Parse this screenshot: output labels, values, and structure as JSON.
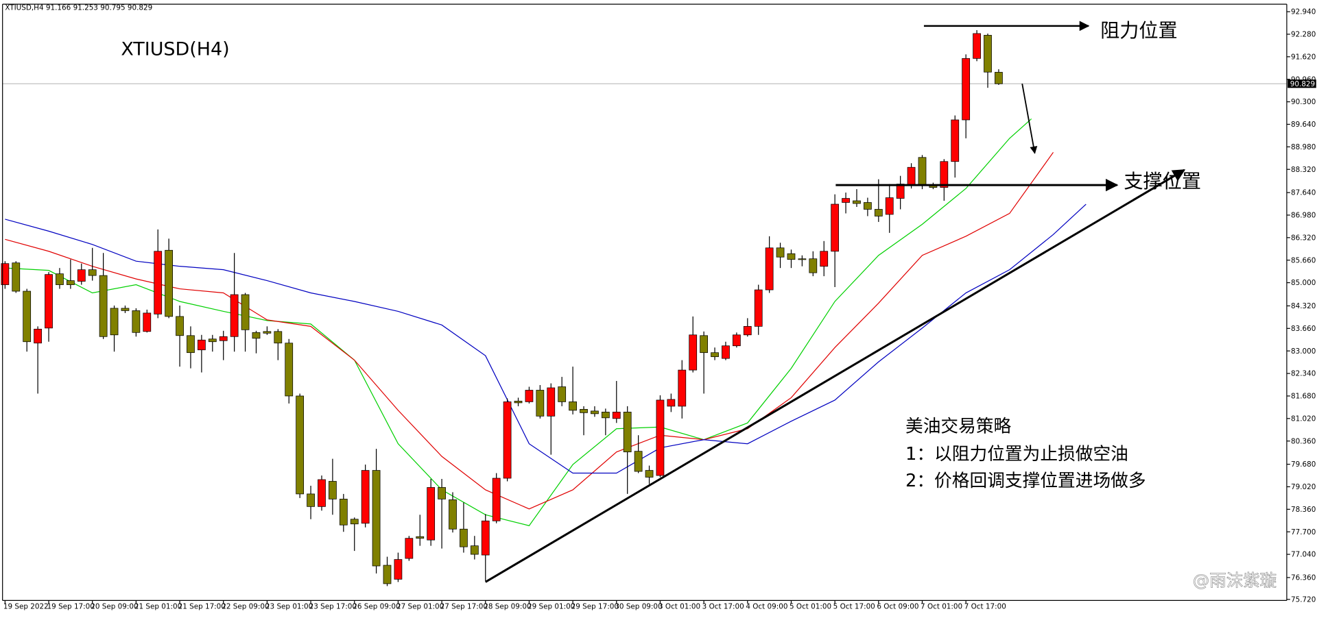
{
  "header": {
    "symbol": "XTIUSD,H4"
  },
  "chart_data": {
    "type": "candlestick",
    "title": "XTIUSD(H4)",
    "categories": [
      "19 Sep 2022",
      null,
      null,
      null,
      "19 Sep 17:00",
      null,
      null,
      null,
      "20 Sep 09:00",
      null,
      null,
      null,
      "21 Sep 01:00",
      null,
      null,
      null,
      "21 Sep 17:00",
      null,
      null,
      null,
      "22 Sep 09:00",
      null,
      null,
      null,
      "23 Sep 01:00",
      null,
      null,
      null,
      "23 Sep 17:00",
      null,
      null,
      null,
      "26 Sep 09:00",
      null,
      null,
      null,
      "27 Sep 01:00",
      null,
      null,
      null,
      "27 Sep 17:00",
      null,
      null,
      null,
      "28 Sep 09:00",
      null,
      null,
      null,
      "29 Sep 01:00",
      null,
      null,
      null,
      "29 Sep 17:00",
      null,
      null,
      null,
      "30 Sep 09:00",
      null,
      null,
      null,
      "3 Oct 01:00",
      null,
      null,
      null,
      "3 Oct 17:00",
      null,
      null,
      null,
      "4 Oct 09:00",
      null,
      null,
      null,
      "5 Oct 01:00",
      null,
      null,
      null,
      "5 Oct 17:00",
      null,
      null,
      null,
      "6 Oct 09:00",
      null,
      null,
      null,
      "7 Oct 01:00",
      null,
      null,
      null,
      "7 Oct 17:00",
      null,
      null,
      null
    ],
    "up_color": "#ff0000",
    "down_color": "#808000",
    "candles": [
      [
        84.94,
        85.63,
        84.82,
        85.56
      ],
      [
        85.58,
        85.63,
        84.7,
        84.75
      ],
      [
        84.75,
        84.82,
        82.98,
        83.27
      ],
      [
        83.23,
        83.72,
        81.75,
        83.64
      ],
      [
        83.67,
        85.31,
        83.27,
        85.24
      ],
      [
        85.26,
        85.43,
        84.82,
        84.94
      ],
      [
        85.06,
        85.68,
        84.82,
        84.94
      ],
      [
        85.04,
        85.56,
        84.94,
        85.38
      ],
      [
        85.38,
        86.02,
        85.06,
        85.21
      ],
      [
        85.21,
        85.87,
        83.35,
        83.42
      ],
      [
        84.25,
        84.33,
        82.98,
        83.47
      ],
      [
        84.25,
        84.33,
        84.11,
        84.18
      ],
      [
        84.18,
        84.25,
        83.42,
        83.54
      ],
      [
        83.57,
        84.21,
        83.54,
        84.11
      ],
      [
        84.08,
        86.56,
        83.96,
        85.92
      ],
      [
        85.95,
        86.29,
        83.96,
        84.01
      ],
      [
        84.01,
        84.33,
        82.54,
        83.45
      ],
      [
        83.45,
        83.72,
        82.49,
        82.95
      ],
      [
        83.03,
        83.47,
        82.37,
        83.32
      ],
      [
        83.35,
        83.47,
        82.98,
        83.27
      ],
      [
        83.3,
        83.59,
        82.73,
        83.42
      ],
      [
        83.42,
        85.87,
        82.98,
        84.65
      ],
      [
        84.65,
        84.7,
        82.98,
        83.62
      ],
      [
        83.54,
        83.59,
        82.93,
        83.37
      ],
      [
        83.57,
        83.72,
        83.47,
        83.52
      ],
      [
        83.57,
        83.64,
        82.73,
        83.23
      ],
      [
        83.23,
        83.35,
        81.46,
        81.68
      ],
      [
        81.68,
        81.75,
        78.69,
        78.81
      ],
      [
        78.81,
        79.05,
        78.07,
        78.44
      ],
      [
        78.44,
        79.35,
        78.32,
        79.23
      ],
      [
        79.18,
        79.84,
        78.2,
        78.66
      ],
      [
        78.66,
        78.81,
        77.7,
        77.9
      ],
      [
        78.07,
        78.12,
        77.14,
        77.93
      ],
      [
        77.95,
        79.67,
        77.83,
        79.5
      ],
      [
        79.5,
        80.13,
        76.48,
        76.7
      ],
      [
        76.72,
        76.97,
        76.11,
        76.18
      ],
      [
        76.31,
        77.09,
        76.23,
        76.89
      ],
      [
        76.92,
        77.58,
        76.85,
        77.51
      ],
      [
        77.56,
        78.2,
        77.29,
        77.51
      ],
      [
        77.46,
        79.25,
        77.29,
        79.0
      ],
      [
        79.0,
        79.25,
        77.21,
        78.66
      ],
      [
        78.64,
        78.86,
        77.68,
        77.78
      ],
      [
        77.78,
        78.56,
        77.09,
        77.26
      ],
      [
        77.29,
        77.58,
        76.89,
        77.04
      ],
      [
        77.02,
        78.22,
        76.26,
        78.02
      ],
      [
        78.02,
        79.42,
        77.95,
        79.27
      ],
      [
        79.27,
        81.61,
        79.18,
        81.51
      ],
      [
        81.53,
        81.63,
        81.38,
        81.48
      ],
      [
        81.51,
        81.95,
        81.46,
        81.85
      ],
      [
        81.85,
        82.0,
        81.02,
        81.09
      ],
      [
        81.09,
        82.05,
        79.96,
        81.92
      ],
      [
        81.95,
        82.24,
        81.38,
        81.51
      ],
      [
        81.51,
        82.54,
        81.14,
        81.26
      ],
      [
        81.29,
        81.38,
        80.53,
        81.19
      ],
      [
        81.24,
        81.38,
        81.07,
        81.16
      ],
      [
        81.21,
        81.31,
        80.53,
        81.04
      ],
      [
        81.02,
        82.12,
        80.89,
        81.21
      ],
      [
        81.21,
        81.38,
        78.81,
        80.04
      ],
      [
        80.06,
        80.53,
        79.42,
        79.47
      ],
      [
        79.5,
        79.64,
        79.1,
        79.3
      ],
      [
        79.35,
        81.7,
        79.3,
        81.56
      ],
      [
        81.38,
        81.75,
        81.21,
        81.58
      ],
      [
        81.38,
        82.73,
        81.02,
        82.44
      ],
      [
        82.44,
        84.01,
        82.37,
        83.47
      ],
      [
        83.45,
        83.57,
        81.75,
        82.95
      ],
      [
        82.95,
        83.1,
        82.73,
        82.83
      ],
      [
        82.78,
        83.27,
        82.73,
        83.15
      ],
      [
        83.15,
        83.54,
        83.1,
        83.47
      ],
      [
        83.47,
        83.96,
        83.42,
        83.72
      ],
      [
        83.72,
        84.94,
        83.47,
        84.79
      ],
      [
        84.79,
        86.36,
        84.7,
        86.02
      ],
      [
        86.02,
        86.17,
        85.43,
        85.75
      ],
      [
        85.85,
        85.97,
        85.43,
        85.68
      ],
      [
        85.7,
        85.8,
        85.48,
        85.68
      ],
      [
        85.7,
        85.92,
        85.19,
        85.29
      ],
      [
        85.48,
        86.22,
        85.19,
        85.92
      ],
      [
        85.92,
        87.59,
        84.87,
        87.3
      ],
      [
        87.35,
        87.64,
        87.03,
        87.47
      ],
      [
        87.4,
        87.74,
        87.22,
        87.32
      ],
      [
        87.35,
        87.49,
        86.95,
        87.15
      ],
      [
        87.15,
        88.03,
        86.78,
        86.95
      ],
      [
        87.0,
        87.89,
        86.46,
        87.49
      ],
      [
        87.47,
        88.13,
        87.15,
        87.89
      ],
      [
        87.86,
        88.5,
        87.76,
        88.38
      ],
      [
        88.67,
        88.74,
        87.74,
        87.84
      ],
      [
        87.84,
        87.93,
        87.74,
        87.79
      ],
      [
        87.79,
        88.62,
        87.4,
        88.55
      ],
      [
        88.55,
        89.9,
        88.08,
        89.77
      ],
      [
        89.77,
        91.69,
        89.23,
        91.57
      ],
      [
        91.57,
        92.4,
        91.49,
        92.3
      ],
      [
        92.25,
        92.3,
        90.71,
        91.17
      ],
      [
        91.166,
        91.253,
        90.795,
        90.829
      ]
    ],
    "overlays": [
      {
        "color": "#00d000",
        "x": [
          0,
          4,
          8,
          12,
          16,
          20,
          24,
          28,
          32,
          36,
          40,
          44,
          48,
          52,
          56,
          60,
          64,
          68,
          72,
          76,
          80,
          84,
          88,
          92,
          94
        ],
        "values": [
          85.43,
          85.36,
          84.7,
          84.94,
          84.45,
          84.16,
          83.89,
          83.79,
          82.73,
          80.28,
          78.93,
          78.2,
          77.88,
          79.67,
          80.72,
          80.77,
          80.4,
          80.89,
          82.49,
          84.45,
          85.8,
          86.71,
          87.76,
          89.23,
          89.8
        ]
      },
      {
        "color": "#e00000",
        "x": [
          0,
          4,
          8,
          12,
          16,
          20,
          24,
          28,
          32,
          36,
          40,
          44,
          48,
          52,
          56,
          60,
          64,
          68,
          72,
          76,
          80,
          84,
          88,
          92,
          96
        ],
        "values": [
          86.27,
          85.92,
          85.48,
          85.11,
          84.82,
          84.7,
          83.91,
          83.72,
          82.73,
          81.26,
          79.91,
          78.93,
          78.37,
          78.93,
          80.04,
          80.53,
          80.4,
          80.72,
          81.63,
          83.1,
          84.4,
          85.8,
          86.36,
          87.03,
          88.82
        ]
      },
      {
        "color": "#0000c0",
        "x": [
          0,
          4,
          8,
          12,
          16,
          20,
          24,
          28,
          32,
          36,
          40,
          44,
          48,
          52,
          56,
          60,
          64,
          68,
          72,
          76,
          80,
          84,
          88,
          92,
          96,
          99
        ],
        "values": [
          86.86,
          86.51,
          86.12,
          85.63,
          85.48,
          85.38,
          85.06,
          84.7,
          84.45,
          84.16,
          83.76,
          82.86,
          80.28,
          79.42,
          79.42,
          80.16,
          80.4,
          80.28,
          80.94,
          81.56,
          82.68,
          83.67,
          84.7,
          85.38,
          86.41,
          87.3
        ]
      }
    ],
    "ylim": [
      75.69,
      93.16
    ],
    "yticks": [
      {
        "value": 92.94,
        "label": "92.940"
      },
      {
        "value": 92.28,
        "label": "92.280"
      },
      {
        "value": 91.62,
        "label": "91.620"
      },
      {
        "value": 90.96,
        "label": "90.960"
      },
      {
        "value": 90.3,
        "label": "90.300"
      },
      {
        "value": 89.64,
        "label": "89.640"
      },
      {
        "value": 88.98,
        "label": "88.980"
      },
      {
        "value": 88.32,
        "label": "88.320"
      },
      {
        "value": 87.64,
        "label": "87.640"
      },
      {
        "value": 86.98,
        "label": "86.980"
      },
      {
        "value": 86.32,
        "label": "86.320"
      },
      {
        "value": 85.66,
        "label": "85.660"
      },
      {
        "value": 85,
        "label": "85.000"
      },
      {
        "value": 84.32,
        "label": "84.320"
      },
      {
        "value": 83.66,
        "label": "83.660"
      },
      {
        "value": 83,
        "label": "83.000"
      },
      {
        "value": 82.34,
        "label": "82.340"
      },
      {
        "value": 81.68,
        "label": "81.680"
      },
      {
        "value": 81.02,
        "label": "81.020"
      },
      {
        "value": 80.36,
        "label": "80.360"
      },
      {
        "value": 79.68,
        "label": "79.680"
      },
      {
        "value": 79.02,
        "label": "79.020"
      },
      {
        "value": 78.36,
        "label": "78.360"
      },
      {
        "value": 77.7,
        "label": "77.700"
      },
      {
        "value": 77.04,
        "label": "77.040"
      },
      {
        "value": 76.36,
        "label": "76.360"
      },
      {
        "value": 75.72,
        "label": "75.720"
      }
    ],
    "annotations": {
      "resistance": "阻力位置",
      "support": "支撑位置",
      "strategy_title": "美油交易策略",
      "strategy_1": "1：以阻力位置为止损做空油",
      "strategy_2": "2：价格回调支撑位置进场做多",
      "watermark": "@雨沫紫璇"
    }
  }
}
